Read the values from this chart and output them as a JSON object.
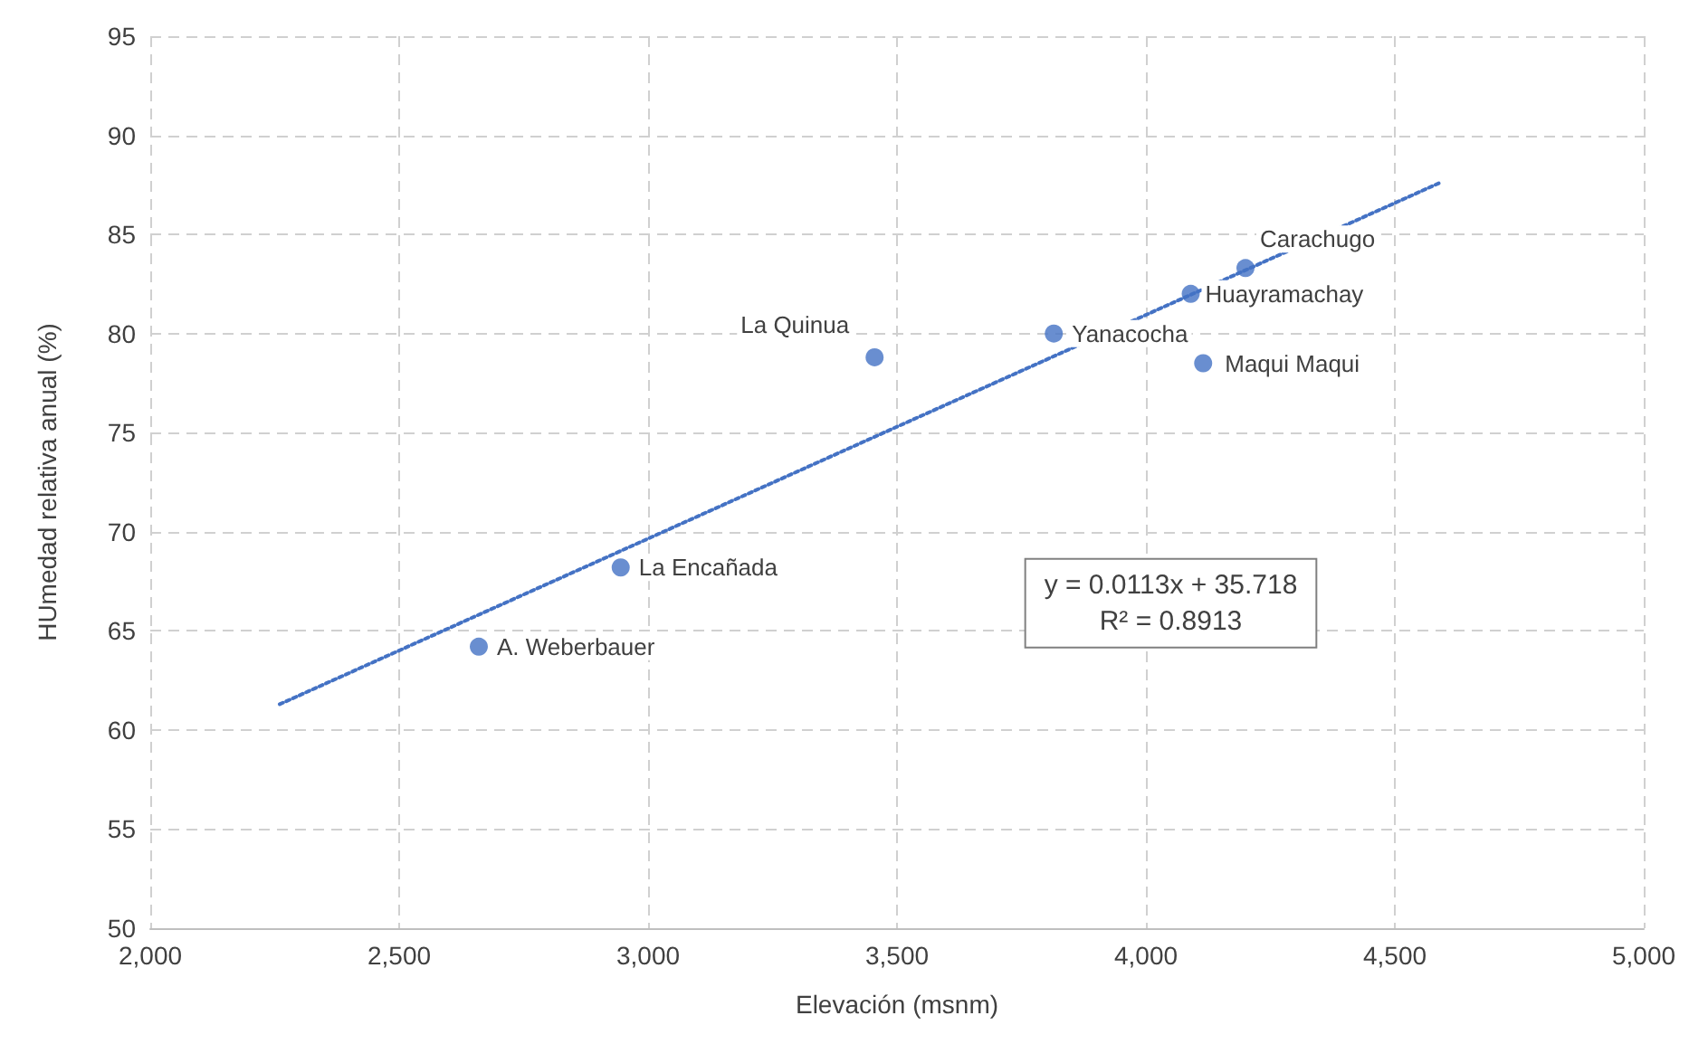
{
  "chart_data": {
    "type": "scatter",
    "xlabel": "Elevación (msnm)",
    "ylabel": "HUmedad relativa anual (%)",
    "x": [
      2660,
      2945,
      3455,
      3815,
      4090,
      4200,
      4115
    ],
    "series": [
      {
        "color": "#4472c4",
        "values": [
          64.2,
          68.2,
          78.8,
          80.0,
          82.0,
          83.3,
          78.5
        ]
      },
      {
        "type": "line",
        "color": "#4472c4",
        "x": [
          2260,
          4590
        ],
        "values": [
          61.3,
          87.6
        ],
        "line_style": "dotted",
        "marker": "none"
      }
    ],
    "annotations": [
      {
        "text": "A. Weberbauer",
        "x": 2660,
        "y": 64.2
      },
      {
        "text": "La Encañada",
        "x": 2945,
        "y": 68.2
      },
      {
        "text": "La Quinua",
        "x": 3455,
        "y": 78.8
      },
      {
        "text": "Yanacocha",
        "x": 3815,
        "y": 80.0
      },
      {
        "text": "Huayramachay",
        "x": 4090,
        "y": 82.0
      },
      {
        "text": "Carachugo",
        "x": 4200,
        "y": 83.3
      },
      {
        "text": "Maqui Maqui",
        "x": 4115,
        "y": 78.5
      },
      "y = 0.0113x + 35.718\nR² = 0.8913"
    ],
    "xlim": [
      2000,
      5000
    ],
    "xticks": [
      {
        "value": 2000,
        "label": "2,000"
      },
      {
        "value": 2500,
        "label": "2,500"
      },
      {
        "value": 3000,
        "label": "3,000"
      },
      {
        "value": 3500,
        "label": "3,500"
      },
      {
        "value": 4000,
        "label": "4,000"
      },
      {
        "value": 4500,
        "label": "4,500"
      },
      {
        "value": 5000,
        "label": "5,000"
      }
    ],
    "ylim": [
      50,
      95
    ],
    "yticks": [
      50,
      55,
      60,
      65,
      70,
      75,
      80,
      85,
      90,
      95
    ],
    "grid": true,
    "marker": "circle"
  }
}
